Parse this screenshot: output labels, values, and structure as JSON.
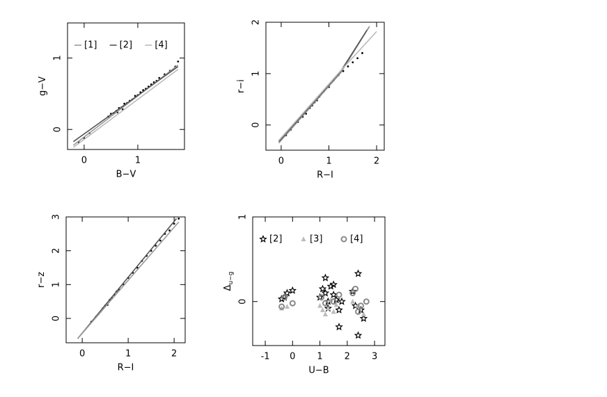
{
  "chart_data": [
    {
      "type": "scatter",
      "xlabel": "B−V",
      "ylabel": "g−V",
      "xlim": [
        -0.31,
        1.87
      ],
      "ylim": [
        -0.28,
        1.49
      ],
      "xticks": [
        0,
        1
      ],
      "yticks": [
        0,
        1
      ],
      "legend": "top",
      "series": [
        {
          "marker": "dot",
          "color": "#000",
          "x": [
            0.45,
            0.5,
            0.55,
            0.6,
            0.62,
            0.65,
            0.7,
            0.72,
            0.75,
            0.8,
            0.85,
            0.9,
            0.95,
            1.0,
            1.05,
            1.1,
            1.15,
            1.2,
            1.25,
            1.3,
            1.35,
            1.4,
            1.5,
            1.6,
            1.7,
            1.75,
            0.0,
            0.1,
            -0.1
          ],
          "values": [
            0.18,
            0.22,
            0.23,
            0.26,
            0.24,
            0.3,
            0.31,
            0.28,
            0.36,
            0.37,
            0.4,
            0.42,
            0.47,
            0.48,
            0.52,
            0.55,
            0.57,
            0.6,
            0.63,
            0.66,
            0.68,
            0.72,
            0.77,
            0.82,
            0.88,
            0.95,
            -0.12,
            -0.05,
            -0.18
          ]
        },
        {
          "name": "[1]",
          "marker": "line",
          "color": "#999999",
          "x": [
            -0.2,
            1.75
          ],
          "values": [
            -0.22,
            0.9
          ]
        },
        {
          "name": "[2]",
          "marker": "line",
          "color": "#555555",
          "x": [
            -0.2,
            1.75
          ],
          "values": [
            -0.17,
            0.88
          ]
        },
        {
          "name": "[4]",
          "marker": "line",
          "color": "#bbbbbb",
          "x": [
            -0.2,
            1.75
          ],
          "values": [
            -0.25,
            0.84
          ]
        }
      ]
    },
    {
      "type": "scatter",
      "xlabel": "R−I",
      "ylabel": "r−i",
      "xlim": [
        -0.32,
        2.16
      ],
      "ylim": [
        -0.49,
        2.0
      ],
      "xticks": [
        0,
        1,
        2
      ],
      "yticks": [
        0,
        1,
        2
      ],
      "series": [
        {
          "marker": "dot",
          "color": "#000",
          "x": [
            0.1,
            0.2,
            0.3,
            0.35,
            0.4,
            0.45,
            0.5,
            0.52,
            0.55,
            0.6,
            0.62,
            0.65,
            0.7,
            0.75,
            0.8,
            0.9,
            1.0,
            1.1,
            1.2,
            1.3,
            1.4,
            1.5,
            1.6,
            1.7
          ],
          "values": [
            -0.2,
            -0.09,
            0.03,
            0.06,
            0.14,
            0.16,
            0.25,
            0.22,
            0.3,
            0.33,
            0.37,
            0.38,
            0.44,
            0.48,
            0.55,
            0.66,
            0.74,
            0.87,
            0.97,
            1.05,
            1.14,
            1.22,
            1.3,
            1.4
          ]
        },
        {
          "marker": "line",
          "color": "#888888",
          "x": [
            -0.05,
            1.25,
            1.85
          ],
          "values": [
            -0.35,
            1.02,
            1.92
          ]
        },
        {
          "marker": "line",
          "color": "#555555",
          "x": [
            -0.05,
            1.25,
            1.8
          ],
          "values": [
            -0.32,
            1.05,
            1.85
          ]
        },
        {
          "marker": "line",
          "color": "#bbbbbb",
          "x": [
            -0.05,
            1.25,
            2.0
          ],
          "values": [
            -0.3,
            1.06,
            1.82
          ]
        }
      ]
    },
    {
      "type": "scatter",
      "xlabel": "R−I",
      "ylabel": "r−z",
      "xlim": [
        -0.35,
        2.24
      ],
      "ylim": [
        -0.72,
        3.0
      ],
      "xticks": [
        0,
        1,
        2
      ],
      "yticks": [
        0,
        1,
        2,
        3
      ],
      "series": [
        {
          "marker": "dot",
          "color": "#000",
          "x": [
            0.2,
            0.3,
            0.35,
            0.4,
            0.45,
            0.5,
            0.55,
            0.6,
            0.65,
            0.7,
            0.75,
            0.8,
            0.9,
            1.0,
            1.1,
            1.2,
            1.3,
            1.4,
            1.5,
            1.6,
            1.7,
            1.8,
            1.9,
            2.0,
            2.1
          ],
          "values": [
            -0.1,
            0.05,
            0.12,
            0.2,
            0.3,
            0.38,
            0.4,
            0.55,
            0.6,
            0.7,
            0.8,
            0.85,
            1.0,
            1.2,
            1.35,
            1.5,
            1.7,
            1.85,
            2.0,
            2.15,
            2.3,
            2.5,
            2.6,
            2.8,
            2.95
          ]
        },
        {
          "marker": "line",
          "color": "#555555",
          "x": [
            -0.1,
            2.05
          ],
          "values": [
            -0.6,
            2.95
          ]
        },
        {
          "marker": "line",
          "color": "#999999",
          "x": [
            -0.1,
            2.1
          ],
          "values": [
            -0.6,
            2.85
          ]
        }
      ]
    },
    {
      "type": "scatter",
      "xlabel": "U−B",
      "ylabel": "Δ",
      "ylabel_sub": "u−g",
      "xlim": [
        -1.46,
        3.38
      ],
      "ylim": [
        -0.52,
        1.0
      ],
      "xticks": [
        -1,
        0,
        1,
        2,
        3
      ],
      "yticks": [
        0,
        1
      ],
      "legend": "top",
      "series": [
        {
          "name": "[2]",
          "marker": "star",
          "color": "#000000",
          "x": [
            -0.4,
            -0.3,
            -0.2,
            0.0,
            1.0,
            1.1,
            1.2,
            1.3,
            1.4,
            1.5,
            1.6,
            1.7,
            1.2,
            1.3,
            1.5,
            1.8,
            2.2,
            2.3,
            2.4,
            2.5,
            2.6,
            1.7,
            2.4
          ],
          "values": [
            0.03,
            0.05,
            0.1,
            0.13,
            0.05,
            0.15,
            0.1,
            0.0,
            0.18,
            0.08,
            0.02,
            -0.1,
            0.28,
            -0.08,
            0.2,
            0.0,
            0.12,
            -0.05,
            0.33,
            -0.1,
            -0.2,
            -0.3,
            -0.4
          ]
        },
        {
          "name": "[3]",
          "marker": "triangle",
          "color": "#bbbbbb",
          "x": [
            -0.4,
            -0.2,
            1.0,
            1.1,
            1.3,
            1.4,
            1.6,
            2.2,
            2.4,
            2.6,
            1.2,
            1.5
          ],
          "values": [
            -0.08,
            -0.06,
            -0.05,
            -0.1,
            -0.08,
            0.02,
            -0.04,
            0.0,
            -0.05,
            -0.15,
            -0.15,
            -0.12
          ]
        },
        {
          "name": "[4]",
          "marker": "circle",
          "color": "#888888",
          "x": [
            -0.4,
            -0.3,
            0.0,
            1.05,
            1.2,
            1.5,
            1.7,
            2.3,
            2.4,
            2.5,
            2.7,
            2.2
          ],
          "values": [
            -0.06,
            0.05,
            -0.02,
            0.05,
            -0.02,
            0.0,
            0.08,
            0.15,
            -0.12,
            -0.05,
            0.0,
            0.1
          ]
        }
      ]
    }
  ]
}
